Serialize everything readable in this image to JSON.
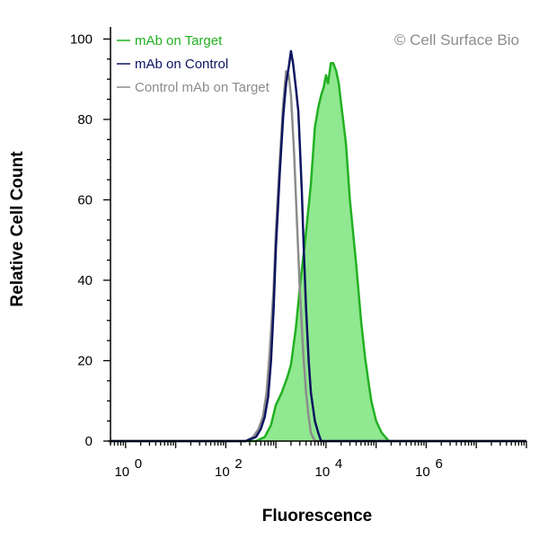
{
  "chart_data": {
    "type": "area",
    "title": "",
    "watermark": "© Cell Surface Bio",
    "xlabel": "Fluorescence",
    "ylabel": "Relative Cell Count",
    "x_scale": "log",
    "xlim": [
      0.5,
      100000000
    ],
    "ylim": [
      0,
      103
    ],
    "y_ticks": [
      0,
      20,
      40,
      60,
      80,
      100
    ],
    "x_ticks": [
      {
        "value": 1,
        "base": "10",
        "exp": "0"
      },
      {
        "value": 100,
        "base": "10",
        "exp": "2"
      },
      {
        "value": 10000,
        "base": "10",
        "exp": "4"
      },
      {
        "value": 1000000,
        "base": "10",
        "exp": "6"
      }
    ],
    "grid": false,
    "legend_position": "top-left",
    "series": [
      {
        "name": "mAb on Target",
        "color": "#22b022",
        "fill": "#90e890",
        "filled": true,
        "points": [
          [
            0.5,
            0
          ],
          [
            400,
            0
          ],
          [
            600,
            1
          ],
          [
            800,
            4
          ],
          [
            1000,
            9
          ],
          [
            1300,
            12
          ],
          [
            1700,
            16
          ],
          [
            2000,
            19
          ],
          [
            2500,
            28
          ],
          [
            3000,
            38
          ],
          [
            4000,
            52
          ],
          [
            5000,
            64
          ],
          [
            6000,
            78
          ],
          [
            7000,
            83
          ],
          [
            8000,
            86
          ],
          [
            9000,
            88
          ],
          [
            10000,
            91
          ],
          [
            11000,
            89
          ],
          [
            12500,
            94
          ],
          [
            14000,
            94
          ],
          [
            16000,
            92
          ],
          [
            18000,
            89
          ],
          [
            20000,
            84
          ],
          [
            25000,
            74
          ],
          [
            30000,
            60
          ],
          [
            40000,
            44
          ],
          [
            50000,
            30
          ],
          [
            60000,
            21
          ],
          [
            70000,
            15
          ],
          [
            80000,
            10
          ],
          [
            100000,
            5
          ],
          [
            130000,
            2
          ],
          [
            180000,
            0
          ],
          [
            100000000,
            0
          ]
        ]
      },
      {
        "name": "mAb on Control",
        "color": "#0c1460",
        "filled": false,
        "points": [
          [
            0.5,
            0
          ],
          [
            250,
            0
          ],
          [
            400,
            1
          ],
          [
            500,
            3
          ],
          [
            600,
            6
          ],
          [
            700,
            11
          ],
          [
            800,
            20
          ],
          [
            900,
            33
          ],
          [
            1000,
            48
          ],
          [
            1200,
            67
          ],
          [
            1400,
            81
          ],
          [
            1600,
            89
          ],
          [
            1800,
            93
          ],
          [
            2000,
            97
          ],
          [
            2200,
            94
          ],
          [
            2500,
            88
          ],
          [
            2800,
            82
          ],
          [
            3000,
            74
          ],
          [
            3300,
            62
          ],
          [
            3600,
            48
          ],
          [
            4000,
            33
          ],
          [
            4500,
            20
          ],
          [
            5000,
            12
          ],
          [
            6000,
            5
          ],
          [
            7000,
            2
          ],
          [
            8000,
            0
          ],
          [
            100000000,
            0
          ]
        ]
      },
      {
        "name": "Control mAb on Target",
        "color": "#8c8c8c",
        "filled": false,
        "points": [
          [
            0.5,
            0
          ],
          [
            250,
            0
          ],
          [
            350,
            1
          ],
          [
            450,
            3
          ],
          [
            550,
            6
          ],
          [
            650,
            12
          ],
          [
            750,
            22
          ],
          [
            900,
            38
          ],
          [
            1000,
            52
          ],
          [
            1200,
            70
          ],
          [
            1400,
            84
          ],
          [
            1600,
            92
          ],
          [
            1800,
            91
          ],
          [
            2000,
            86
          ],
          [
            2300,
            72
          ],
          [
            2600,
            56
          ],
          [
            3000,
            38
          ],
          [
            3500,
            22
          ],
          [
            4000,
            12
          ],
          [
            4500,
            6
          ],
          [
            5000,
            2
          ],
          [
            6000,
            0
          ],
          [
            100000000,
            0
          ]
        ]
      }
    ]
  }
}
